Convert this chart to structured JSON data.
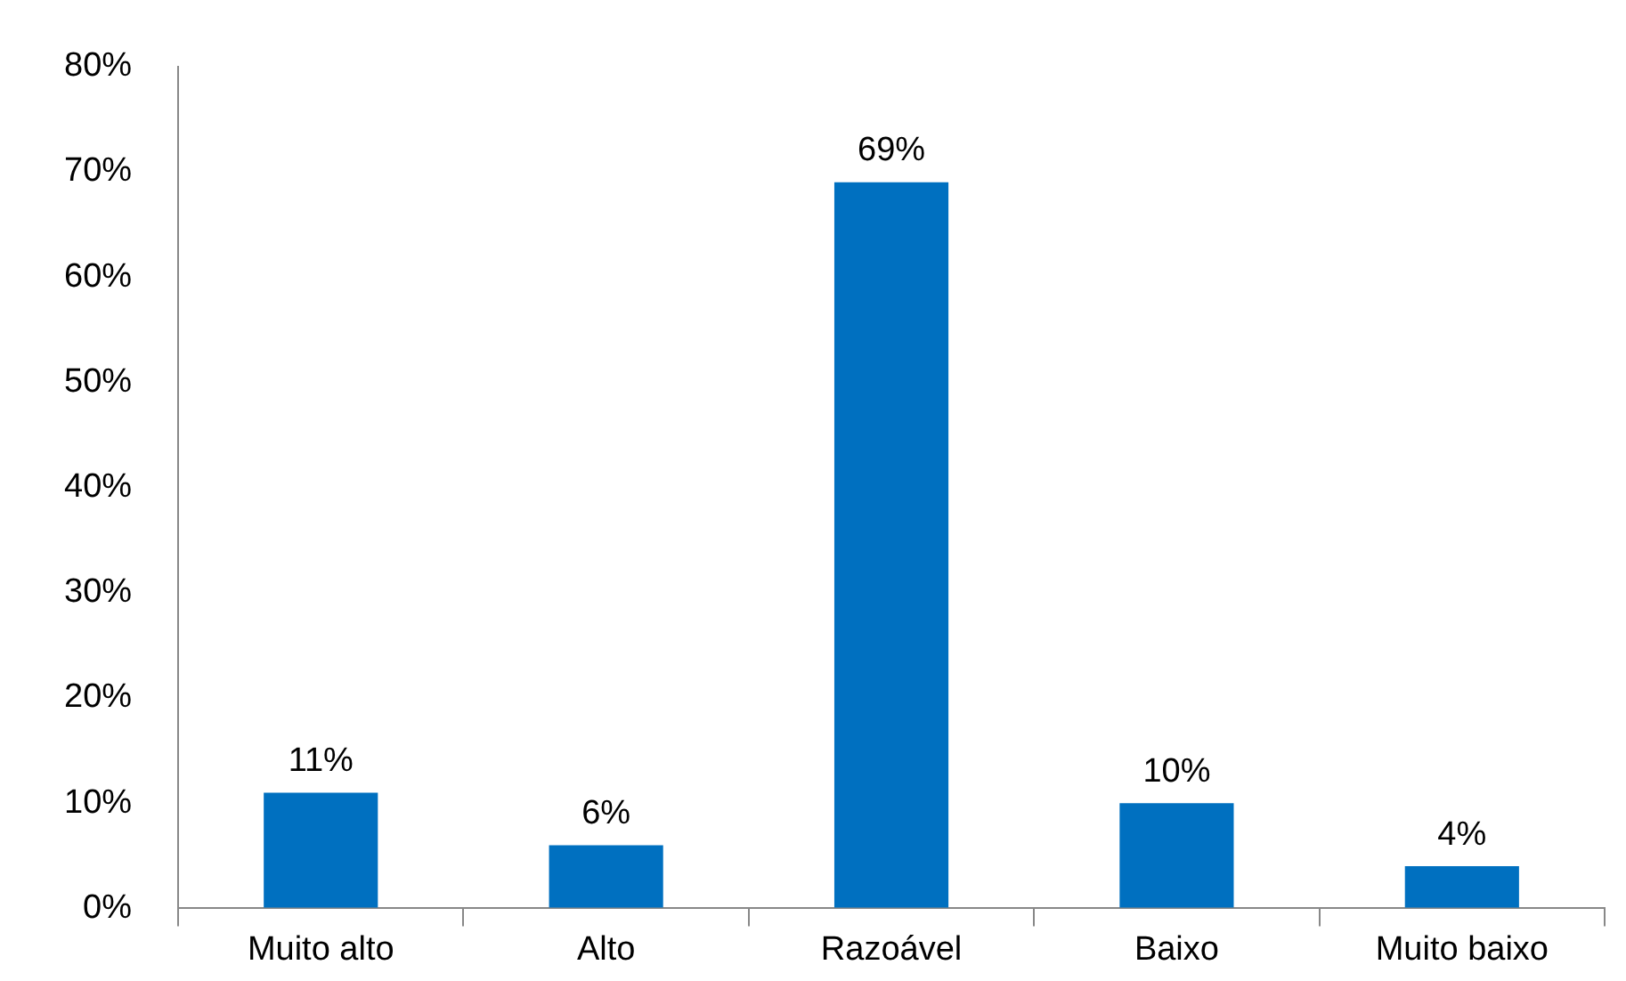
{
  "chart_data": {
    "type": "bar",
    "categories": [
      "Muito alto",
      "Alto",
      "Razoável",
      "Baixo",
      "Muito baixo"
    ],
    "values": [
      11,
      6,
      69,
      10,
      4
    ],
    "color": "#0070c0",
    "value_labels": [
      "11%",
      "6%",
      "69%",
      "10%",
      "4%"
    ],
    "ylim": [
      0,
      80
    ],
    "yticks": [
      {
        "value": 0,
        "label": "0%"
      },
      {
        "value": 10,
        "label": "10%"
      },
      {
        "value": 20,
        "label": "20%"
      },
      {
        "value": 30,
        "label": "30%"
      },
      {
        "value": 40,
        "label": "40%"
      },
      {
        "value": 50,
        "label": "50%"
      },
      {
        "value": 60,
        "label": "60%"
      },
      {
        "value": 70,
        "label": "70%"
      },
      {
        "value": 80,
        "label": "80%"
      }
    ],
    "grid": false,
    "legend": false
  }
}
